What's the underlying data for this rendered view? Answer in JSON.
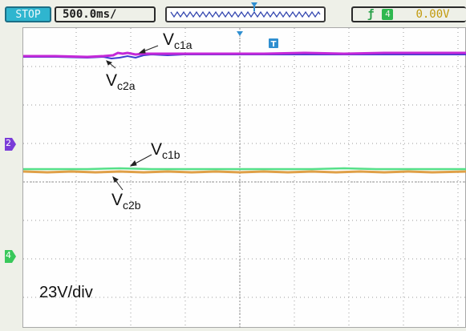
{
  "status": {
    "run_state": "STOP",
    "timebase": "500.0ms/",
    "trigger_channel": "4",
    "trigger_level": "0.00V"
  },
  "colors": {
    "ch1": "#c428d8",
    "ch2": "#3c3cd0",
    "ch3": "#55e088",
    "ch4": "#e0a048",
    "trigger": "#2f8fd0",
    "state_bg": "#2fb5cf"
  },
  "icons": {
    "trigger_edge": "rising-edge-icon",
    "trigger_marker": "trigger-position-icon"
  },
  "annotations": {
    "vc1a": {
      "main": "V",
      "sub": "c1a"
    },
    "vc2a": {
      "main": "V",
      "sub": "c2a"
    },
    "vc1b": {
      "main": "V",
      "sub": "c1b"
    },
    "vc2b": {
      "main": "V",
      "sub": "c2b"
    }
  },
  "channel_markers": {
    "ch2": "2",
    "ch4": "4"
  },
  "scale_label": "23V/div"
}
